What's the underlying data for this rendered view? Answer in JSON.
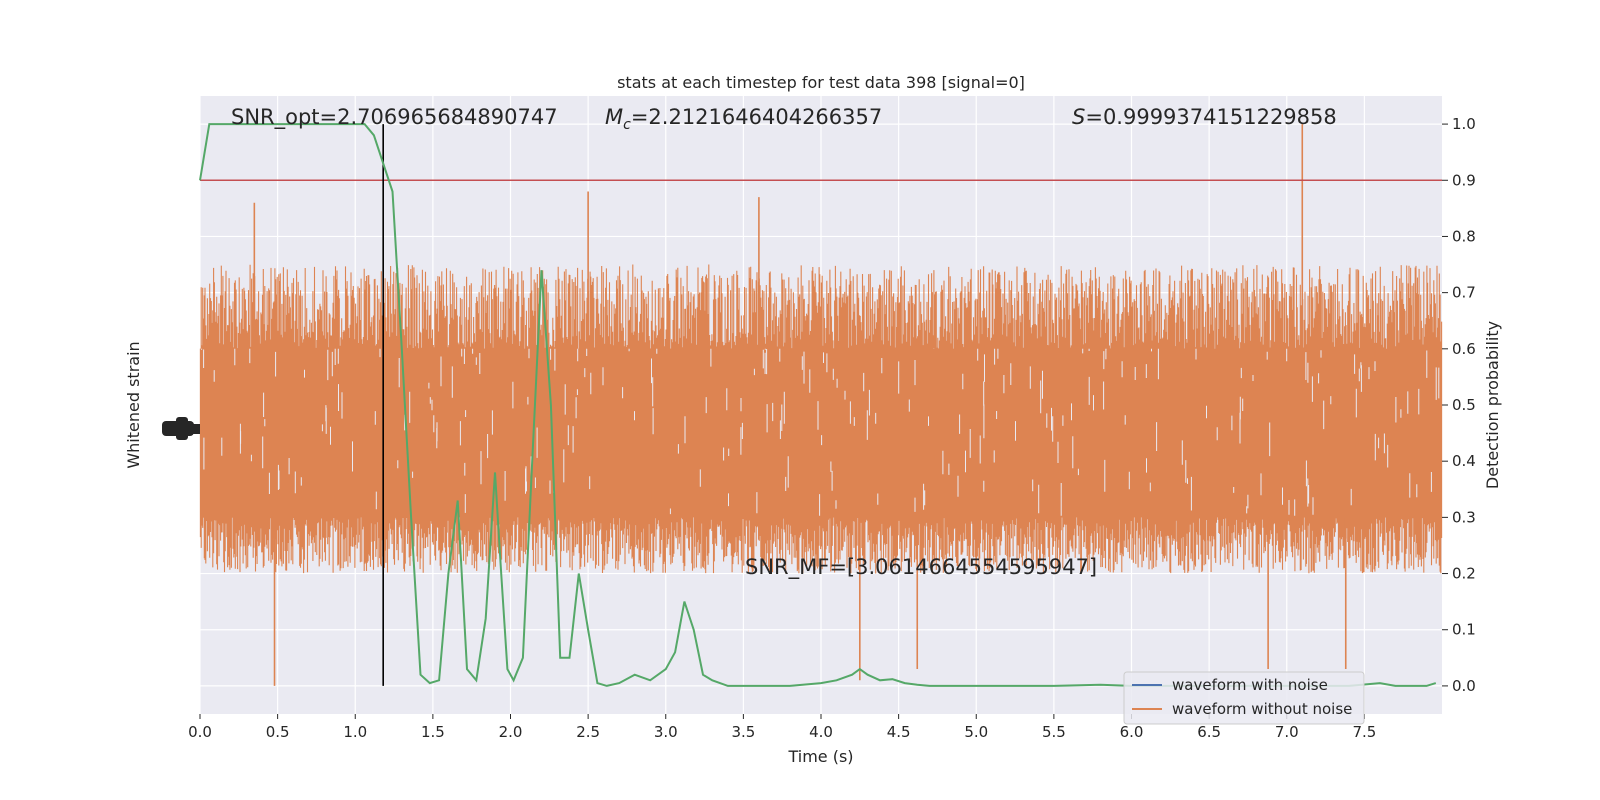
{
  "chart_data": {
    "type": "line",
    "title": "stats at each timestep for test data 398 [signal=0]",
    "xlabel": "Time (s)",
    "ylabel_left": "Whitened strain",
    "ylabel_right": "Detection probability",
    "xlim": [
      0.0,
      8.0
    ],
    "ylim_right": [
      -0.05,
      1.05
    ],
    "x_ticks": [
      0.0,
      0.5,
      1.0,
      1.5,
      2.0,
      2.5,
      3.0,
      3.5,
      4.0,
      4.5,
      5.0,
      5.5,
      6.0,
      6.5,
      7.0,
      7.5
    ],
    "x_tick_labels": [
      "0.0",
      "0.5",
      "1.0",
      "1.5",
      "2.0",
      "2.5",
      "3.0",
      "3.5",
      "4.0",
      "4.5",
      "5.0",
      "5.5",
      "6.0",
      "6.5",
      "7.0",
      "7.5"
    ],
    "y_ticks_right": [
      0.0,
      0.1,
      0.2,
      0.3,
      0.4,
      0.5,
      0.6,
      0.7,
      0.8,
      0.9,
      1.0
    ],
    "y_tick_labels_right": [
      "0.0",
      "0.1",
      "0.2",
      "0.3",
      "0.4",
      "0.5",
      "0.6",
      "0.7",
      "0.8",
      "0.9",
      "1.0"
    ],
    "grid": true,
    "background": "#eaeaf2",
    "threshold": 0.9,
    "threshold_color": "#c44e52",
    "marker_time": 1.18,
    "marker_color": "#000000",
    "annotations": {
      "snr_opt": "SNR_opt=2.706965684890747",
      "mc_symbol": "M",
      "mc_sub": "c",
      "mc_value": "=2.2121646404266357",
      "s_symbol": "S",
      "s_value": "=0.9999374151229858",
      "snr_mf": "SNR_MF=[3.0614664554595947]"
    },
    "series": [
      {
        "name": "waveform with noise",
        "color": "#4c72b0"
      },
      {
        "name": "waveform without noise",
        "color": "#dd8452",
        "band_core": [
          0.3,
          0.6
        ],
        "band_typical": [
          0.2,
          0.75
        ],
        "band_extreme": [
          0.0,
          1.0
        ],
        "spikes": [
          {
            "x": 0.35,
            "y": 0.86
          },
          {
            "x": 0.48,
            "y": 0.0
          },
          {
            "x": 2.5,
            "y": 0.88
          },
          {
            "x": 3.6,
            "y": 0.87
          },
          {
            "x": 4.25,
            "y": 0.01
          },
          {
            "x": 4.62,
            "y": 0.03
          },
          {
            "x": 6.88,
            "y": 0.03
          },
          {
            "x": 7.1,
            "y": 1.0
          },
          {
            "x": 7.38,
            "y": 0.03
          }
        ]
      },
      {
        "name": "detection probability",
        "color": "#55a868",
        "x": [
          0.0,
          0.06,
          0.12,
          0.2,
          0.3,
          0.4,
          0.5,
          0.6,
          0.7,
          0.8,
          0.9,
          1.0,
          1.06,
          1.12,
          1.18,
          1.24,
          1.3,
          1.36,
          1.42,
          1.48,
          1.54,
          1.6,
          1.66,
          1.72,
          1.78,
          1.84,
          1.9,
          1.94,
          1.98,
          2.02,
          2.08,
          2.14,
          2.2,
          2.26,
          2.32,
          2.38,
          2.44,
          2.5,
          2.56,
          2.62,
          2.7,
          2.8,
          2.9,
          3.0,
          3.06,
          3.12,
          3.18,
          3.24,
          3.3,
          3.4,
          3.5,
          3.6,
          3.8,
          4.0,
          4.1,
          4.2,
          4.25,
          4.3,
          4.38,
          4.46,
          4.54,
          4.62,
          4.7,
          4.8,
          5.0,
          5.2,
          5.5,
          5.8,
          6.0,
          6.5,
          7.0,
          7.2,
          7.4,
          7.6,
          7.7,
          7.8,
          7.9,
          7.96
        ],
        "values": [
          0.9,
          1.0,
          1.0,
          1.0,
          1.0,
          1.0,
          1.0,
          1.0,
          1.0,
          1.0,
          1.0,
          1.0,
          1.0,
          0.98,
          0.93,
          0.88,
          0.6,
          0.3,
          0.02,
          0.005,
          0.01,
          0.2,
          0.33,
          0.03,
          0.01,
          0.12,
          0.38,
          0.2,
          0.03,
          0.01,
          0.05,
          0.4,
          0.74,
          0.5,
          0.05,
          0.05,
          0.2,
          0.1,
          0.005,
          0.0,
          0.005,
          0.02,
          0.01,
          0.03,
          0.06,
          0.15,
          0.1,
          0.02,
          0.01,
          0.0,
          0.0,
          0.0,
          0.0,
          0.005,
          0.01,
          0.02,
          0.03,
          0.02,
          0.01,
          0.012,
          0.005,
          0.002,
          0.0,
          0.0,
          0.0,
          0.0,
          0.0,
          0.002,
          0.0,
          0.0,
          0.0,
          0.0,
          0.0,
          0.005,
          0.0,
          0.0,
          0.0,
          0.005
        ]
      }
    ]
  }
}
